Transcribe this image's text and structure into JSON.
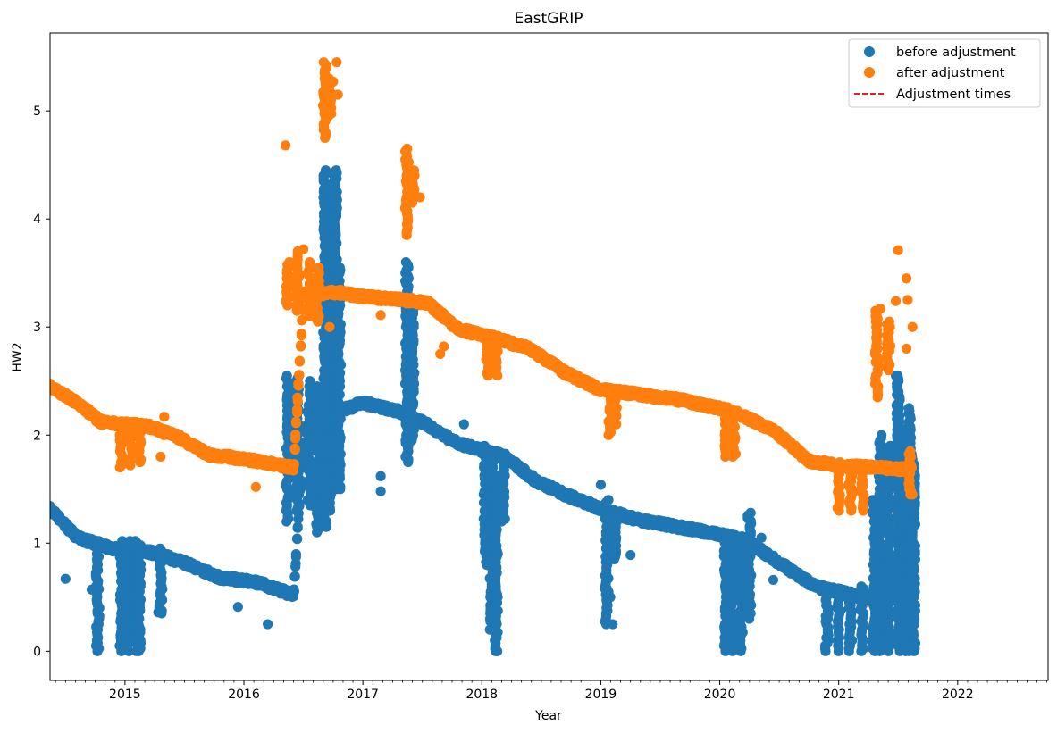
{
  "chart_data": {
    "type": "scatter",
    "title": "EastGRIP",
    "xlabel": "Year",
    "ylabel": "HW2",
    "xlim": [
      2014.37,
      2022.76
    ],
    "ylim": [
      -0.27,
      5.72
    ],
    "x_ticks": [
      2015,
      2016,
      2017,
      2018,
      2019,
      2020,
      2021,
      2022
    ],
    "y_ticks": [
      0,
      1,
      2,
      3,
      4,
      5
    ],
    "grid": false,
    "legend_position": "upper right",
    "legend": [
      "before adjustment",
      "after adjustment",
      "Adjustment times"
    ],
    "colors": {
      "before": "#1f77b4",
      "after": "#ff7f0e",
      "adjustment": "#d62728"
    },
    "series": [
      {
        "name": "before adjustment",
        "kind": "markers",
        "trend": [
          [
            2014.37,
            1.32
          ],
          [
            2014.6,
            1.05
          ],
          [
            2014.9,
            0.95
          ],
          [
            2015.2,
            0.92
          ],
          [
            2015.5,
            0.82
          ],
          [
            2015.8,
            0.68
          ],
          [
            2016.1,
            0.64
          ],
          [
            2016.42,
            0.52
          ],
          [
            2016.5,
            2.05
          ],
          [
            2016.8,
            2.22
          ],
          [
            2017.0,
            2.3
          ],
          [
            2017.3,
            2.22
          ],
          [
            2017.5,
            2.12
          ],
          [
            2017.8,
            1.92
          ],
          [
            2018.2,
            1.8
          ],
          [
            2018.45,
            1.58
          ],
          [
            2018.7,
            1.45
          ],
          [
            2019.0,
            1.32
          ],
          [
            2019.3,
            1.22
          ],
          [
            2019.7,
            1.14
          ],
          [
            2020.2,
            1.04
          ],
          [
            2020.5,
            0.82
          ],
          [
            2020.8,
            0.6
          ],
          [
            2021.2,
            0.5
          ],
          [
            2021.6,
            0.5
          ]
        ],
        "spikes": [
          [
            2014.77,
            0.0,
            1.0
          ],
          [
            2014.97,
            0.0,
            1.02
          ],
          [
            2015.03,
            0.0,
            1.02
          ],
          [
            2015.1,
            0.0,
            1.02
          ],
          [
            2015.12,
            0.0,
            0.98
          ],
          [
            2015.3,
            0.35,
            0.95
          ],
          [
            2016.37,
            1.2,
            2.55
          ],
          [
            2016.45,
            1.3,
            2.55
          ],
          [
            2016.55,
            1.35,
            2.5
          ],
          [
            2016.62,
            1.1,
            2.45
          ],
          [
            2016.68,
            1.15,
            4.45
          ],
          [
            2016.72,
            1.3,
            4.3
          ],
          [
            2016.77,
            1.5,
            4.45
          ],
          [
            2016.8,
            1.5,
            3.55
          ],
          [
            2017.37,
            1.75,
            3.6
          ],
          [
            2017.42,
            1.95,
            3.2
          ],
          [
            2018.03,
            0.8,
            1.9
          ],
          [
            2018.08,
            0.2,
            1.75
          ],
          [
            2018.12,
            0.0,
            1.6
          ],
          [
            2018.18,
            1.2,
            1.8
          ],
          [
            2019.05,
            0.25,
            1.4
          ],
          [
            2019.12,
            0.85,
            1.25
          ],
          [
            2020.05,
            0.0,
            1.08
          ],
          [
            2020.1,
            0.0,
            1.05
          ],
          [
            2020.18,
            0.0,
            1.02
          ],
          [
            2020.25,
            0.3,
            1.28
          ],
          [
            2020.9,
            0.0,
            0.6
          ],
          [
            2021.0,
            0.0,
            0.55
          ],
          [
            2021.1,
            0.0,
            0.55
          ],
          [
            2021.2,
            0.0,
            0.6
          ],
          [
            2021.3,
            0.0,
            1.4
          ],
          [
            2021.35,
            0.0,
            2.0
          ],
          [
            2021.42,
            0.0,
            1.9
          ],
          [
            2021.5,
            0.0,
            2.55
          ],
          [
            2021.55,
            0.0,
            2.05
          ],
          [
            2021.6,
            0.0,
            2.25
          ],
          [
            2021.63,
            0.0,
            1.8
          ]
        ],
        "outliers": [
          [
            2014.5,
            0.67
          ],
          [
            2014.72,
            0.57
          ],
          [
            2015.28,
            0.36
          ],
          [
            2015.95,
            0.41
          ],
          [
            2016.2,
            0.25
          ],
          [
            2016.6,
            1.33
          ],
          [
            2017.15,
            1.48
          ],
          [
            2017.15,
            1.62
          ],
          [
            2017.85,
            2.1
          ],
          [
            2017.28,
            2.24
          ],
          [
            2018.1,
            0.58
          ],
          [
            2018.13,
            0.0
          ],
          [
            2019.1,
            0.25
          ],
          [
            2019.05,
            0.58
          ],
          [
            2019.08,
            0.5
          ],
          [
            2019.25,
            0.89
          ],
          [
            2020.35,
            1.05
          ],
          [
            2020.45,
            0.66
          ],
          [
            2019.0,
            1.54
          ],
          [
            2021.48,
            2.55
          ]
        ]
      },
      {
        "name": "after adjustment",
        "kind": "markers",
        "trend": [
          [
            2014.37,
            2.45
          ],
          [
            2014.6,
            2.3
          ],
          [
            2014.8,
            2.12
          ],
          [
            2015.2,
            2.08
          ],
          [
            2015.45,
            1.98
          ],
          [
            2015.7,
            1.82
          ],
          [
            2016.0,
            1.78
          ],
          [
            2016.42,
            1.7
          ],
          [
            2016.5,
            3.3
          ],
          [
            2016.8,
            3.32
          ],
          [
            2017.0,
            3.28
          ],
          [
            2017.35,
            3.25
          ],
          [
            2017.55,
            3.22
          ],
          [
            2017.8,
            2.98
          ],
          [
            2018.1,
            2.9
          ],
          [
            2018.4,
            2.8
          ],
          [
            2018.7,
            2.58
          ],
          [
            2019.0,
            2.42
          ],
          [
            2019.3,
            2.38
          ],
          [
            2019.7,
            2.32
          ],
          [
            2020.1,
            2.22
          ],
          [
            2020.45,
            2.05
          ],
          [
            2020.75,
            1.76
          ],
          [
            2021.0,
            1.72
          ],
          [
            2021.6,
            1.68
          ]
        ],
        "spikes": [
          [
            2014.97,
            1.7,
            2.1
          ],
          [
            2015.05,
            1.72,
            2.1
          ],
          [
            2015.12,
            1.75,
            2.08
          ],
          [
            2016.37,
            3.2,
            3.6
          ],
          [
            2016.45,
            3.15,
            3.7
          ],
          [
            2016.55,
            3.1,
            3.6
          ],
          [
            2016.62,
            3.05,
            3.55
          ],
          [
            2016.68,
            4.75,
            5.45
          ],
          [
            2016.72,
            4.95,
            5.3
          ],
          [
            2017.37,
            3.85,
            4.65
          ],
          [
            2017.42,
            4.15,
            4.45
          ],
          [
            2018.05,
            2.55,
            2.9
          ],
          [
            2018.12,
            2.55,
            2.85
          ],
          [
            2019.08,
            2.0,
            2.4
          ],
          [
            2019.12,
            2.1,
            2.38
          ],
          [
            2020.05,
            1.8,
            2.2
          ],
          [
            2020.12,
            1.8,
            2.2
          ],
          [
            2021.0,
            1.3,
            1.72
          ],
          [
            2021.1,
            1.3,
            1.72
          ],
          [
            2021.2,
            1.3,
            1.7
          ],
          [
            2021.32,
            2.35,
            3.15
          ],
          [
            2021.42,
            2.6,
            3.05
          ],
          [
            2021.6,
            1.45,
            1.85
          ]
        ],
        "outliers": [
          [
            2016.35,
            4.68
          ],
          [
            2016.5,
            3.72
          ],
          [
            2016.72,
            3.0
          ],
          [
            2016.68,
            5.15
          ],
          [
            2016.78,
            5.45
          ],
          [
            2016.75,
            5.27
          ],
          [
            2016.79,
            5.15
          ],
          [
            2015.33,
            2.17
          ],
          [
            2015.3,
            1.8
          ],
          [
            2016.1,
            1.52
          ],
          [
            2017.15,
            3.11
          ],
          [
            2017.48,
            4.2
          ],
          [
            2017.65,
            2.75
          ],
          [
            2017.68,
            2.82
          ],
          [
            2021.5,
            3.71
          ],
          [
            2021.57,
            3.45
          ],
          [
            2021.58,
            3.25
          ],
          [
            2021.62,
            3.0
          ],
          [
            2021.57,
            2.8
          ],
          [
            2021.48,
            3.24
          ],
          [
            2021.35,
            3.17
          ],
          [
            2021.62,
            1.45
          ]
        ]
      },
      {
        "name": "Adjustment times",
        "kind": "dashed-line",
        "values": []
      }
    ]
  }
}
